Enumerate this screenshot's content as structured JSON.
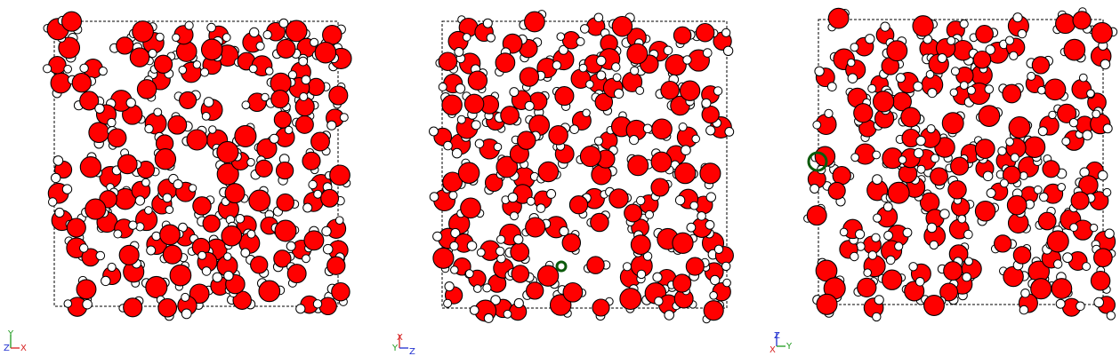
{
  "colors": {
    "oxygen": "#ff0000",
    "hydrogen": "#ffffff",
    "outline": "#000000",
    "highlight": "#0b5a0b",
    "axis_x": "#d62020",
    "axis_y": "#1e9a1e",
    "axis_z": "#2030d0"
  },
  "views": [
    {
      "name": "view-1",
      "highlight": "none",
      "axes": {
        "up": "Y",
        "left": "Z",
        "right": "X"
      }
    },
    {
      "name": "view-2",
      "highlight": "small-ring",
      "axes": {
        "up": "X",
        "left": "Y",
        "right": "Z"
      }
    },
    {
      "name": "view-3",
      "highlight": "large-ring",
      "axes": {
        "up": "Z",
        "left": "X",
        "right": "Y"
      }
    }
  ]
}
